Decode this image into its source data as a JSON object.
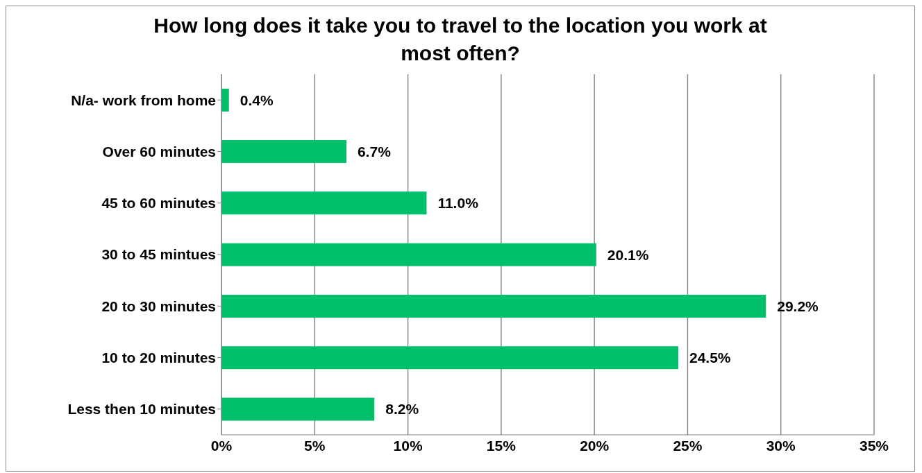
{
  "chart_data": {
    "type": "bar",
    "orientation": "horizontal",
    "title": "How long does it take you to travel to the location you work at most often?",
    "categories": [
      "N/a- work from home",
      "Over 60 minutes",
      "45 to 60 minutes",
      "30 to 45 mintues",
      "20 to 30 minutes",
      "10 to 20 minutes",
      "Less then 10 minutes"
    ],
    "values": [
      0.4,
      6.7,
      11.0,
      20.1,
      29.2,
      24.5,
      8.2
    ],
    "value_labels": [
      "0.4%",
      "6.7%",
      "11.0%",
      "20.1%",
      "29.2%",
      "24.5%",
      "8.2%"
    ],
    "color": "#00c06b",
    "xlim": [
      0,
      35
    ],
    "xticks": [
      {
        "value": 0,
        "label": "0%"
      },
      {
        "value": 5,
        "label": "5%"
      },
      {
        "value": 10,
        "label": "10%"
      },
      {
        "value": 15,
        "label": "15%"
      },
      {
        "value": 20,
        "label": "20%"
      },
      {
        "value": 25,
        "label": "25%"
      },
      {
        "value": 30,
        "label": "30%"
      },
      {
        "value": 35,
        "label": "35%"
      }
    ],
    "grid": "x"
  }
}
